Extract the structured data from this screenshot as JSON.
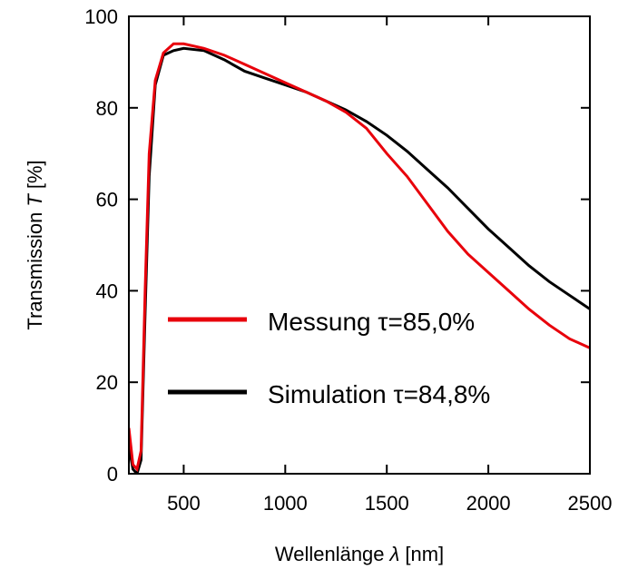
{
  "chart_data": {
    "type": "line",
    "xlabel": [
      "Wellenlänge",
      "λ",
      "[nm]"
    ],
    "ylabel": [
      "Transmission",
      "T",
      "[%]"
    ],
    "x": [
      230,
      250,
      270,
      290,
      310,
      330,
      360,
      400,
      450,
      500,
      600,
      700,
      800,
      900,
      1000,
      1100,
      1200,
      1300,
      1400,
      1500,
      1600,
      1700,
      1800,
      1900,
      2000,
      2100,
      2200,
      2300,
      2400,
      2500
    ],
    "series": [
      {
        "name": "Messung τ=85,0%",
        "color": "#e8000b",
        "values": [
          10,
          2,
          1,
          5,
          40,
          70,
          86,
          92,
          94,
          94,
          93,
          91.5,
          89.5,
          87.5,
          85.5,
          83.5,
          81.5,
          79,
          75.5,
          70,
          65,
          59,
          53,
          48,
          44,
          40,
          36,
          32.5,
          29.5,
          27.5
        ]
      },
      {
        "name": "Simulation τ=84,8%",
        "color": "#000000",
        "values": [
          6,
          1,
          0,
          3,
          35,
          65,
          85,
          91.5,
          92.5,
          93,
          92.5,
          90.5,
          88,
          86.5,
          85,
          83.5,
          81.5,
          79.5,
          77,
          74,
          70.5,
          66.5,
          62.5,
          58,
          53.5,
          49.5,
          45.5,
          42,
          39,
          36
        ]
      }
    ],
    "xlim": [
      230,
      2500
    ],
    "ylim": [
      0,
      100
    ],
    "xticks": [
      500,
      1000,
      1500,
      2000,
      2500
    ],
    "yticks": [
      0,
      20,
      40,
      60,
      80,
      100
    ],
    "legend": "lower left"
  }
}
